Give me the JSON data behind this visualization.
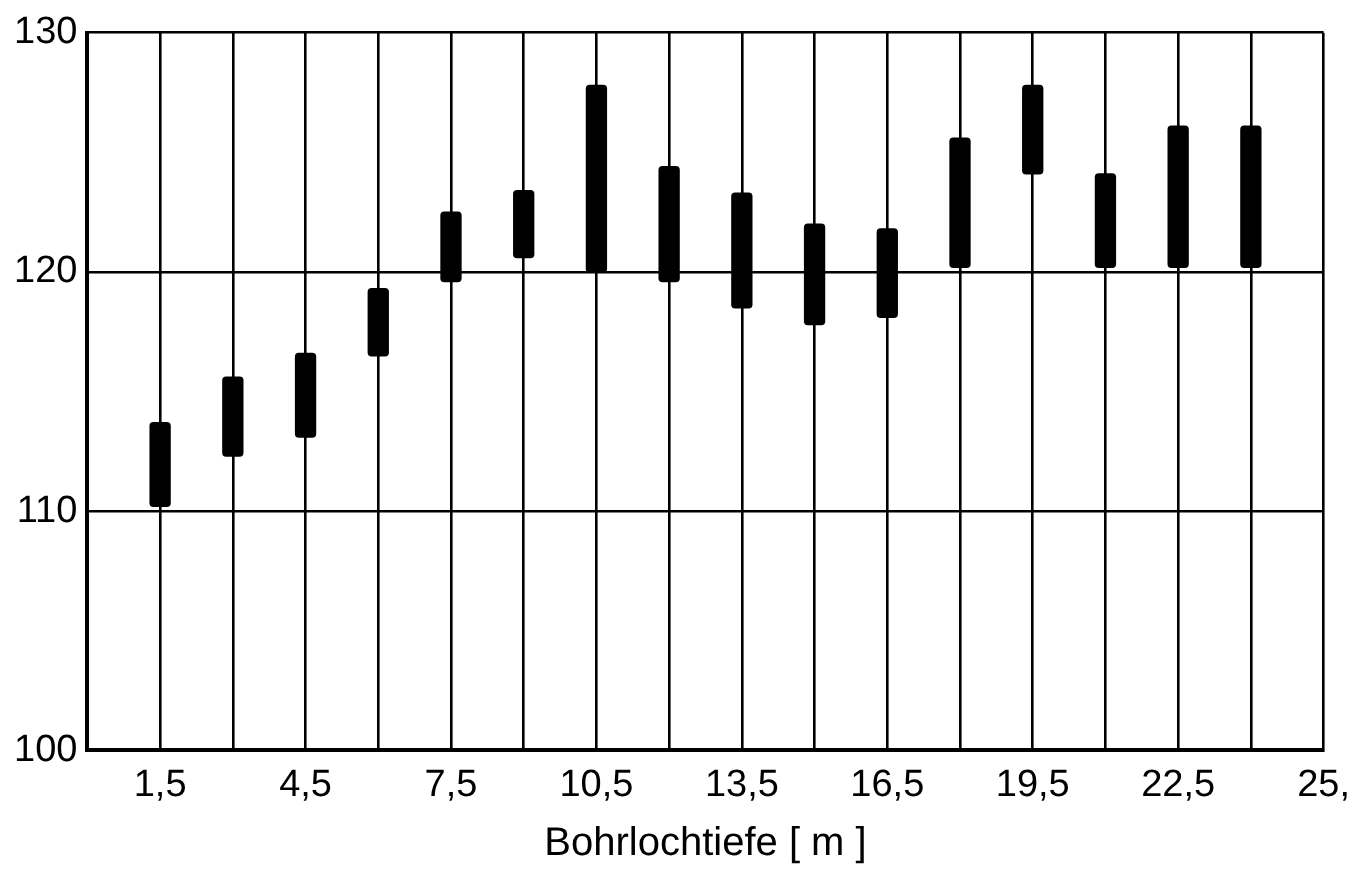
{
  "chart_data": {
    "type": "bar",
    "x": [
      1.5,
      3,
      4.5,
      6,
      7.5,
      9,
      10.5,
      12,
      13.5,
      15,
      16.5,
      18,
      19.5,
      21,
      22.5,
      24
    ],
    "base": [
      110.2,
      112.3,
      113.1,
      116.5,
      119.6,
      120.6,
      120.0,
      119.6,
      118.5,
      117.8,
      118.1,
      120.2,
      124.1,
      120.2,
      120.2,
      120.2
    ],
    "values": [
      3.5,
      3.3,
      3.5,
      2.8,
      2.9,
      2.8,
      7.8,
      4.8,
      4.8,
      4.2,
      3.7,
      5.4,
      3.7,
      3.9,
      5.9,
      5.9
    ],
    "color": "#000000",
    "xlabel": "Bohrlochtiefe [ m ]",
    "xlim": [
      0,
      25.5
    ],
    "xticks": [
      {
        "value": 1.5,
        "label": "1,5"
      },
      {
        "value": 3,
        "label": null
      },
      {
        "value": 4.5,
        "label": "4,5"
      },
      {
        "value": 6,
        "label": null
      },
      {
        "value": 7.5,
        "label": "7,5"
      },
      {
        "value": 9,
        "label": null
      },
      {
        "value": 10.5,
        "label": "10,5"
      },
      {
        "value": 12,
        "label": null
      },
      {
        "value": 13.5,
        "label": "13,5"
      },
      {
        "value": 15,
        "label": null
      },
      {
        "value": 16.5,
        "label": "16,5"
      },
      {
        "value": 18,
        "label": null
      },
      {
        "value": 19.5,
        "label": "19,5"
      },
      {
        "value": 21,
        "label": null
      },
      {
        "value": 22.5,
        "label": "22,5"
      },
      {
        "value": 24,
        "label": null
      },
      {
        "value": 25.5,
        "label": "25,"
      }
    ],
    "ylim": [
      100,
      130
    ],
    "yticks": [
      100,
      110,
      120,
      130
    ],
    "grid": true
  }
}
